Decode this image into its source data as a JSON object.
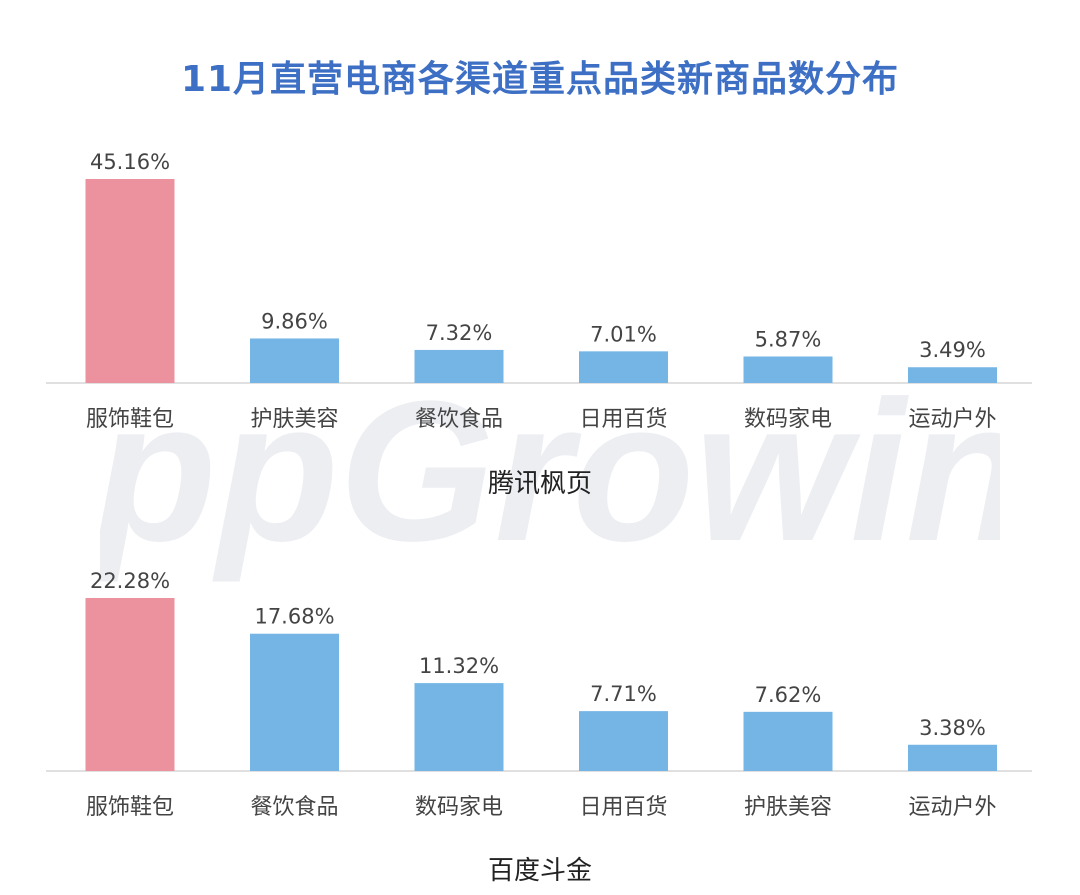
{
  "page": {
    "title": "11月直营电商各渠道重点品类新商品数分布",
    "watermark": "AppGrowing"
  },
  "colors": {
    "title": "#3d6fc4",
    "highlight_bar": "#ec919e",
    "bar": "#75b5e6",
    "axis": "#d6d6d6",
    "text": "#444444"
  },
  "chart_data": [
    {
      "type": "bar",
      "title": "腾讯枫页",
      "categories": [
        "服饰鞋包",
        "护肤美容",
        "餐饮食品",
        "日用百货",
        "数码家电",
        "运动户外"
      ],
      "values": [
        45.16,
        9.86,
        7.32,
        7.01,
        5.87,
        3.49
      ],
      "data_labels": [
        "45.16%",
        "9.86%",
        "7.32%",
        "7.01%",
        "5.87%",
        "3.49%"
      ],
      "unit": "%",
      "highlight_index": 0,
      "ylim": [
        0,
        45.16
      ],
      "grid": false,
      "legend": "none"
    },
    {
      "type": "bar",
      "title": "百度斗金",
      "categories": [
        "服饰鞋包",
        "餐饮食品",
        "数码家电",
        "日用百货",
        "护肤美容",
        "运动户外"
      ],
      "values": [
        22.28,
        17.68,
        11.32,
        7.71,
        7.62,
        3.38
      ],
      "data_labels": [
        "22.28%",
        "17.68%",
        "11.32%",
        "7.71%",
        "7.62%",
        "3.38%"
      ],
      "unit": "%",
      "highlight_index": 0,
      "ylim": [
        0,
        22.28
      ],
      "grid": false,
      "legend": "none"
    }
  ]
}
